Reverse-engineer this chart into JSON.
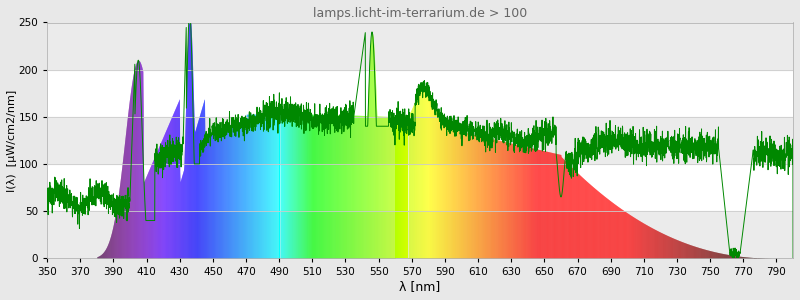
{
  "title": "lamps.licht-im-terrarium.de > 100",
  "xlabel": "λ [nm]",
  "ylabel": "I(λ)  [μW/cm2/nm]",
  "xlim": [
    350,
    800
  ],
  "ylim": [
    0,
    250
  ],
  "xticks": [
    350,
    370,
    390,
    410,
    430,
    450,
    470,
    490,
    510,
    530,
    550,
    570,
    590,
    610,
    630,
    650,
    670,
    690,
    710,
    730,
    750,
    770,
    790
  ],
  "yticks": [
    0,
    50,
    100,
    150,
    200,
    250
  ],
  "background_color": "#e8e8e8",
  "plot_bg_color": "#ffffff",
  "line_color": "#008800",
  "title_color": "#666666",
  "grid_color": "#cccccc",
  "grid_band_color": "#ebebeb"
}
